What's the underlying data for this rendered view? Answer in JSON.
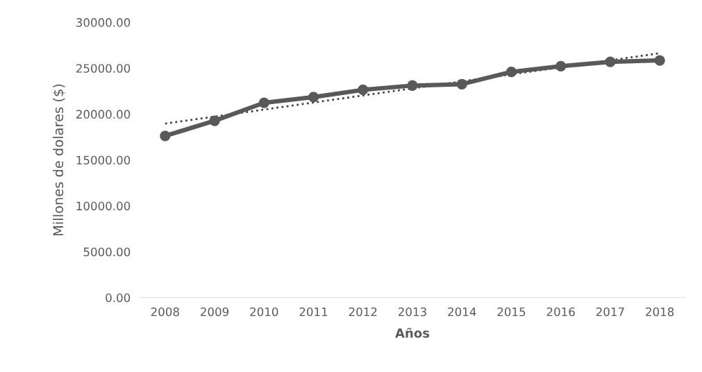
{
  "chart_data": {
    "type": "line",
    "xlabel": "Años",
    "ylabel": "Millones de dolares ($)",
    "categories": [
      "2008",
      "2009",
      "2010",
      "2011",
      "2012",
      "2013",
      "2014",
      "2015",
      "2016",
      "2017",
      "2018"
    ],
    "ylim": [
      0,
      30000
    ],
    "yticks": [
      {
        "value": 0,
        "label": "0.00"
      },
      {
        "value": 5000,
        "label": "5000.00"
      },
      {
        "value": 10000,
        "label": "10000.00"
      },
      {
        "value": 15000,
        "label": "15000.00"
      },
      {
        "value": 20000,
        "label": "20000.00"
      },
      {
        "value": 25000,
        "label": "25000.00"
      },
      {
        "value": 30000,
        "label": "30000.00"
      }
    ],
    "grid": false,
    "legend": false,
    "series": [
      {
        "color": "#595959",
        "marker": "circle",
        "line_style": "solid",
        "values": [
          17620,
          19270,
          21230,
          21850,
          22640,
          23110,
          23260,
          24600,
          25220,
          25690,
          25850
        ]
      },
      {
        "type": "line",
        "color": "#404040",
        "marker": "none",
        "line_style": "dotted",
        "values": [
          18960,
          19730,
          20490,
          21260,
          22030,
          22800,
          23560,
          24330,
          25100,
          25860,
          26630
        ]
      }
    ]
  }
}
